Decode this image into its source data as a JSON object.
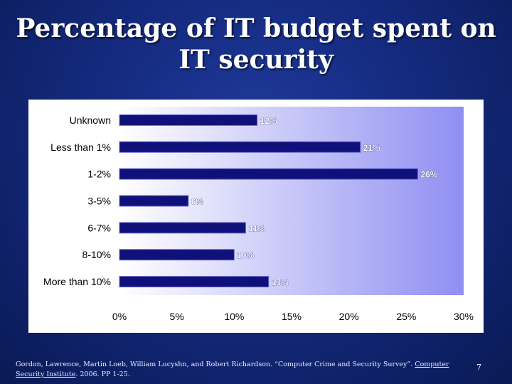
{
  "slide": {
    "title_line1": "Percentage of IT budget spent on",
    "title_line2": "IT security",
    "citation_pre": "Gordon, Lawrence, Martin Loeb, William Lucyshn, and Robert Richardson. “Computer Crime and Security Survey”. ",
    "citation_source": "Computer Security Institute",
    "citation_post": ". 2006. PP 1-25.",
    "page_number": "7"
  },
  "colors": {
    "bar_fill": "#10107a",
    "bar_edge": "#6a6ad0",
    "plot_bg_left": "#ffffff",
    "plot_bg_right": "#8f8ff2",
    "data_label": "#ffffff",
    "data_label_outline": "#1a1a7a"
  },
  "chart_data": {
    "type": "bar",
    "orientation": "horizontal",
    "categories": [
      "Unknown",
      "Less than 1%",
      "1-2%",
      "3-5%",
      "6-7%",
      "8-10%",
      "More than 10%"
    ],
    "values": [
      12,
      21,
      26,
      6,
      11,
      10,
      13
    ],
    "data_labels": [
      "12%",
      "21%",
      "26%",
      "6%",
      "11%",
      "10%",
      "13%"
    ],
    "x_ticks": [
      "0%",
      "5%",
      "10%",
      "15%",
      "20%",
      "25%",
      "30%"
    ],
    "xlim": [
      0,
      30
    ],
    "grid": false,
    "legend": "none"
  }
}
